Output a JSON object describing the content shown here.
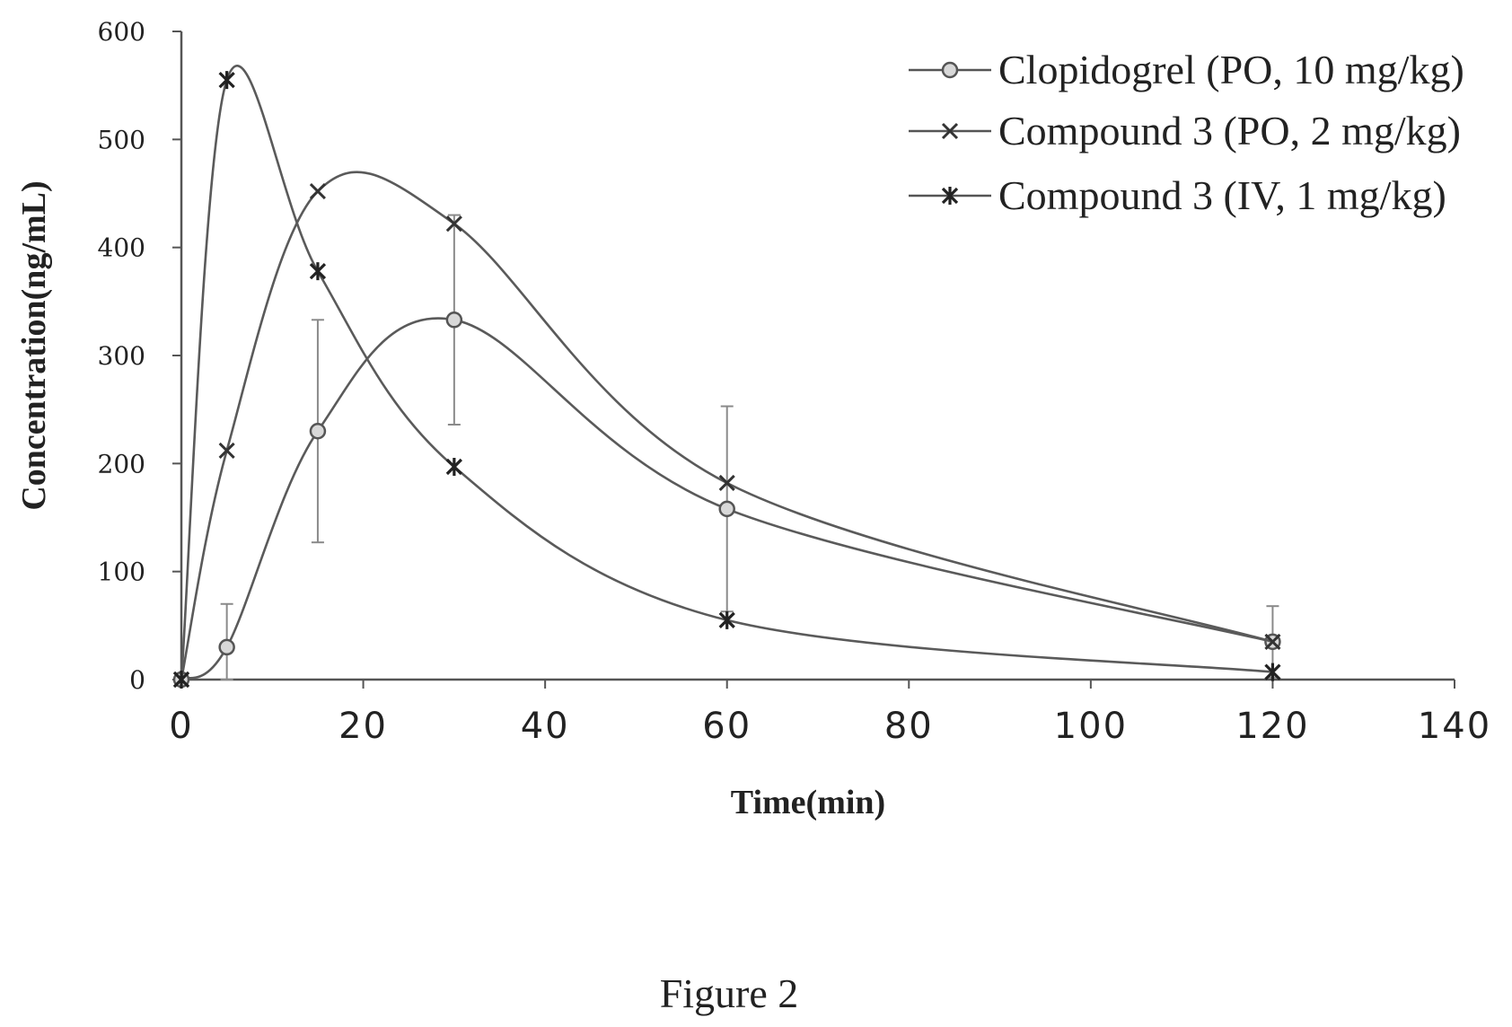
{
  "figure_caption": "Figure 2",
  "chart_data": {
    "type": "line",
    "xlabel": "Time(min)",
    "ylabel": "Concentration(ng/mL)",
    "xlim": [
      0,
      140
    ],
    "ylim": [
      0,
      600
    ],
    "x_ticks": [
      "0",
      "20",
      "40",
      "60",
      "80",
      "100",
      "120",
      "140"
    ],
    "y_ticks": [
      "0",
      "100",
      "200",
      "300",
      "400",
      "500",
      "600"
    ],
    "grid": false,
    "legend_position": "top-right",
    "series": [
      {
        "name": "Clopidogrel (PO, 10 mg/kg)",
        "marker": "circle",
        "x": [
          0,
          5,
          15,
          30,
          60,
          120
        ],
        "y": [
          0,
          30,
          230,
          333,
          158,
          35
        ],
        "error": [
          0,
          40,
          103,
          97,
          95,
          33
        ]
      },
      {
        "name": "Compound 3 (PO, 2 mg/kg)",
        "marker": "x",
        "x": [
          0,
          5,
          15,
          30,
          60,
          120
        ],
        "y": [
          0,
          212,
          452,
          422,
          182,
          35
        ]
      },
      {
        "name": "Compound 3 (IV, 1 mg/kg)",
        "marker": "star",
        "x": [
          0,
          5,
          15,
          30,
          60,
          120
        ],
        "y": [
          0,
          555,
          378,
          197,
          55,
          7
        ]
      }
    ]
  }
}
